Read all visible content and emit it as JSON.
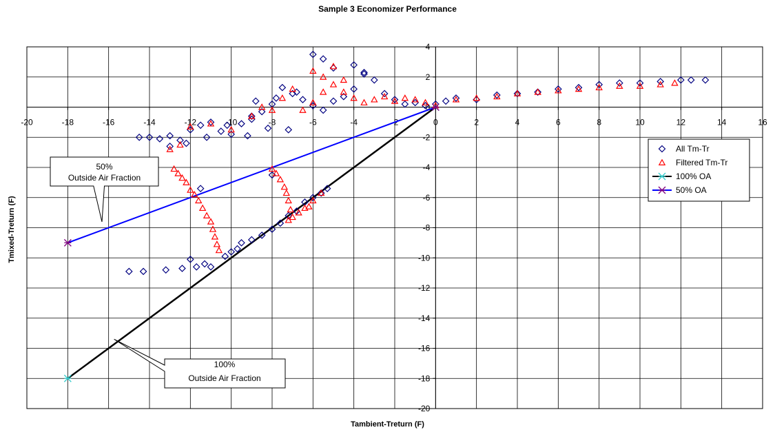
{
  "chart_data": {
    "type": "scatter",
    "title": "Sample 3 Economizer Performance",
    "xlabel": "Tambient-Treturn (F)",
    "ylabel": "Tmixed-Treturn (F)",
    "xlim": [
      -20,
      16
    ],
    "ylim": [
      -20,
      4
    ],
    "xticks": [
      "-20",
      "-18",
      "-16",
      "-14",
      "-12",
      "-10",
      "-8",
      "-6",
      "-4",
      "-2",
      "0",
      "2",
      "4",
      "6",
      "8",
      "10",
      "12",
      "14",
      "16"
    ],
    "yticks": [
      "4",
      "2",
      "0",
      "-2",
      "-4",
      "-6",
      "-8",
      "-10",
      "-12",
      "-14",
      "-16",
      "-18",
      "-20"
    ],
    "grid": true,
    "legend_position": "right",
    "series": [
      {
        "name": "All Tm-Tr",
        "marker": "diamond",
        "color": "#000080",
        "points": [
          [
            -14.5,
            -2.0
          ],
          [
            -14.0,
            -2.0
          ],
          [
            -13.5,
            -2.1
          ],
          [
            -13.0,
            -1.9
          ],
          [
            -12.5,
            -2.2
          ],
          [
            -12.0,
            -1.5
          ],
          [
            -11.5,
            -1.2
          ],
          [
            -11.0,
            -1.0
          ],
          [
            -10.5,
            -1.6
          ],
          [
            -10.0,
            -1.8
          ],
          [
            -9.5,
            -1.1
          ],
          [
            -9.0,
            -0.6
          ],
          [
            -8.5,
            -0.3
          ],
          [
            -8.0,
            0.2
          ],
          [
            -7.5,
            1.3
          ],
          [
            -7.0,
            0.9
          ],
          [
            -6.5,
            0.5
          ],
          [
            -6.0,
            0.1
          ],
          [
            -5.5,
            -0.2
          ],
          [
            -5.0,
            0.4
          ],
          [
            -4.5,
            0.7
          ],
          [
            -4.0,
            1.2
          ],
          [
            -3.5,
            2.3
          ],
          [
            -3.0,
            1.8
          ],
          [
            -2.5,
            0.9
          ],
          [
            -2.0,
            0.5
          ],
          [
            -1.5,
            0.2
          ],
          [
            -1.0,
            0.3
          ],
          [
            -0.5,
            0.1
          ],
          [
            0.0,
            0.2
          ],
          [
            0.5,
            0.4
          ],
          [
            1.0,
            0.6
          ],
          [
            2.0,
            0.5
          ],
          [
            3.0,
            0.8
          ],
          [
            4.0,
            0.9
          ],
          [
            5.0,
            1.0
          ],
          [
            6.0,
            1.2
          ],
          [
            7.0,
            1.3
          ],
          [
            8.0,
            1.5
          ],
          [
            9.0,
            1.6
          ],
          [
            10.0,
            1.6
          ],
          [
            11.0,
            1.7
          ],
          [
            12.0,
            1.8
          ],
          [
            12.5,
            1.8
          ],
          [
            13.2,
            1.8
          ],
          [
            -6.0,
            3.5
          ],
          [
            -5.5,
            3.2
          ],
          [
            -5.0,
            2.6
          ],
          [
            -4.0,
            2.8
          ],
          [
            -3.5,
            2.2
          ],
          [
            -9.0,
            -0.8
          ],
          [
            -8.2,
            -1.4
          ],
          [
            -7.2,
            -1.5
          ],
          [
            -13.0,
            -2.6
          ],
          [
            -12.2,
            -2.4
          ],
          [
            -11.2,
            -2.0
          ],
          [
            -10.2,
            -1.2
          ],
          [
            -9.2,
            -1.9
          ],
          [
            -8.8,
            0.4
          ],
          [
            -7.8,
            0.6
          ],
          [
            -6.8,
            1.0
          ],
          [
            -11.5,
            -5.4
          ],
          [
            -8.0,
            -4.5
          ],
          [
            -15.0,
            -10.9
          ],
          [
            -14.3,
            -10.9
          ],
          [
            -13.2,
            -10.8
          ],
          [
            -12.4,
            -10.7
          ],
          [
            -12.0,
            -10.1
          ],
          [
            -11.7,
            -10.6
          ],
          [
            -11.3,
            -10.4
          ],
          [
            -11.0,
            -10.6
          ],
          [
            -10.3,
            -9.9
          ],
          [
            -10.0,
            -9.6
          ],
          [
            -9.7,
            -9.4
          ],
          [
            -9.5,
            -9.0
          ],
          [
            -9.0,
            -8.8
          ],
          [
            -8.5,
            -8.5
          ],
          [
            -8.0,
            -8.1
          ],
          [
            -7.6,
            -7.7
          ],
          [
            -7.2,
            -7.2
          ],
          [
            -6.8,
            -6.9
          ],
          [
            -6.4,
            -6.3
          ],
          [
            -6.0,
            -6.0
          ],
          [
            -5.6,
            -5.7
          ],
          [
            -5.3,
            -5.4
          ]
        ]
      },
      {
        "name": "Filtered Tm-Tr",
        "marker": "triangle",
        "color": "#ff0000",
        "points": [
          [
            -13.0,
            -2.8
          ],
          [
            -12.5,
            -2.5
          ],
          [
            -12.0,
            -1.3
          ],
          [
            -11.0,
            -1.1
          ],
          [
            -10.0,
            -1.5
          ],
          [
            -9.0,
            -0.6
          ],
          [
            -8.5,
            0.0
          ],
          [
            -8.0,
            -0.2
          ],
          [
            -7.5,
            0.6
          ],
          [
            -7.0,
            1.2
          ],
          [
            -6.5,
            -0.2
          ],
          [
            -6.0,
            0.3
          ],
          [
            -5.5,
            1.0
          ],
          [
            -5.0,
            1.5
          ],
          [
            -4.5,
            1.0
          ],
          [
            -4.0,
            0.6
          ],
          [
            -3.5,
            0.3
          ],
          [
            -3.0,
            0.5
          ],
          [
            -2.5,
            0.7
          ],
          [
            -2.0,
            0.4
          ],
          [
            -1.5,
            0.6
          ],
          [
            -1.0,
            0.5
          ],
          [
            -0.5,
            0.3
          ],
          [
            0.0,
            0.1
          ],
          [
            1.0,
            0.5
          ],
          [
            2.0,
            0.6
          ],
          [
            3.0,
            0.7
          ],
          [
            4.0,
            0.9
          ],
          [
            5.0,
            1.0
          ],
          [
            6.0,
            1.1
          ],
          [
            7.0,
            1.2
          ],
          [
            8.0,
            1.3
          ],
          [
            9.0,
            1.4
          ],
          [
            10.0,
            1.4
          ],
          [
            11.0,
            1.5
          ],
          [
            11.7,
            1.6
          ],
          [
            -6.0,
            2.4
          ],
          [
            -5.5,
            2.0
          ],
          [
            -5.0,
            2.7
          ],
          [
            -4.5,
            1.8
          ],
          [
            -12.8,
            -4.1
          ],
          [
            -12.6,
            -4.4
          ],
          [
            -12.4,
            -4.7
          ],
          [
            -12.2,
            -5.0
          ],
          [
            -12.0,
            -5.5
          ],
          [
            -11.8,
            -5.8
          ],
          [
            -11.6,
            -6.2
          ],
          [
            -11.4,
            -6.7
          ],
          [
            -11.2,
            -7.2
          ],
          [
            -11.0,
            -7.6
          ],
          [
            -10.9,
            -8.1
          ],
          [
            -10.8,
            -8.6
          ],
          [
            -10.7,
            -9.1
          ],
          [
            -10.6,
            -9.5
          ],
          [
            -8.0,
            -4.1
          ],
          [
            -7.8,
            -4.4
          ],
          [
            -7.6,
            -4.8
          ],
          [
            -7.4,
            -5.3
          ],
          [
            -7.3,
            -5.7
          ],
          [
            -7.2,
            -6.2
          ],
          [
            -7.1,
            -6.8
          ],
          [
            -7.2,
            -7.5
          ],
          [
            -7.0,
            -7.3
          ],
          [
            -6.7,
            -7.0
          ],
          [
            -6.4,
            -6.7
          ],
          [
            -6.2,
            -6.6
          ],
          [
            -6.0,
            -6.2
          ],
          [
            -5.6,
            -5.7
          ]
        ]
      },
      {
        "name": "100% OA",
        "marker": "star",
        "color": "#000000",
        "markerColor": "#33cccc",
        "line": true,
        "points": [
          [
            -18,
            -18
          ],
          [
            0,
            0
          ]
        ]
      },
      {
        "name": "50% OA",
        "marker": "star",
        "color": "#0000ff",
        "markerColor": "#800080",
        "line": true,
        "points": [
          [
            -18,
            -9
          ],
          [
            0,
            0
          ]
        ]
      }
    ],
    "annotations": [
      {
        "line1": "50%",
        "line2": "Outside Air Fraction"
      },
      {
        "line1": "100%",
        "line2": "Outside Air Fraction"
      }
    ]
  }
}
